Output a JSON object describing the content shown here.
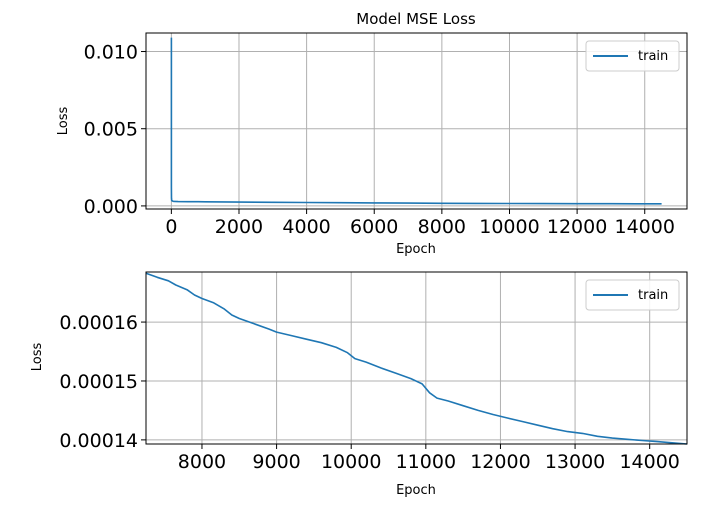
{
  "chart_data": [
    {
      "type": "line",
      "title": "Model MSE Loss",
      "xlabel": "Epoch",
      "ylabel": "Loss",
      "xlim": [
        -750,
        15250
      ],
      "ylim": [
        -0.0002,
        0.0112
      ],
      "xticks": [
        0,
        2000,
        4000,
        6000,
        8000,
        10000,
        12000,
        14000
      ],
      "xtick_labels": [
        "0",
        "2000",
        "4000",
        "6000",
        "8000",
        "10000",
        "12000",
        "14000"
      ],
      "yticks": [
        0.0,
        0.005,
        0.01
      ],
      "ytick_labels": [
        "0.000",
        "0.005",
        "0.010"
      ],
      "grid": true,
      "legend_position": "top-right",
      "series": [
        {
          "name": "train",
          "color": "#1f77b4",
          "x": [
            0,
            1,
            2,
            5,
            10,
            50,
            100,
            200,
            500,
            800,
            1000,
            2000,
            3000,
            4000,
            5000,
            6000,
            7000,
            8000,
            9000,
            10000,
            11000,
            12000,
            13000,
            14000,
            14500
          ],
          "y": [
            0.0109,
            0.004,
            0.0012,
            0.0005,
            0.00035,
            0.0003,
            0.00029,
            0.00028,
            0.000275,
            0.00027,
            0.000265,
            0.00025,
            0.000235,
            0.00022,
            0.000205,
            0.000192,
            0.00018,
            0.00017,
            0.00016,
            0.000155,
            0.00015,
            0.000146,
            0.000143,
            0.00014,
            0.000139
          ]
        }
      ]
    },
    {
      "type": "line",
      "title": "",
      "xlabel": "Epoch",
      "ylabel": "Loss",
      "xlim": [
        7250,
        14500
      ],
      "ylim": [
        0.0001393,
        0.0001685
      ],
      "xticks": [
        8000,
        9000,
        10000,
        11000,
        12000,
        13000,
        14000
      ],
      "xtick_labels": [
        "8000",
        "9000",
        "10000",
        "11000",
        "12000",
        "13000",
        "14000"
      ],
      "yticks": [
        0.00014,
        0.00015,
        0.00016
      ],
      "ytick_labels": [
        "0.00014",
        "0.00015",
        "0.00016"
      ],
      "grid": true,
      "legend_position": "top-right",
      "series": [
        {
          "name": "train",
          "color": "#1f77b4",
          "x": [
            7250,
            7400,
            7550,
            7650,
            7800,
            7900,
            8000,
            8150,
            8300,
            8400,
            8500,
            8700,
            8900,
            9000,
            9200,
            9400,
            9600,
            9800,
            9950,
            10050,
            10200,
            10400,
            10600,
            10800,
            10950,
            11050,
            11150,
            11300,
            11500,
            11700,
            11900,
            12100,
            12300,
            12500,
            12700,
            12900,
            13100,
            13300,
            13500,
            13700,
            13900,
            14100,
            14300,
            14500
          ],
          "y": [
            0.0001683,
            0.0001676,
            0.000167,
            0.0001663,
            0.0001655,
            0.0001646,
            0.000164,
            0.0001633,
            0.0001622,
            0.0001612,
            0.0001606,
            0.0001597,
            0.0001588,
            0.0001583,
            0.0001577,
            0.0001571,
            0.0001565,
            0.0001557,
            0.0001548,
            0.0001538,
            0.0001532,
            0.0001522,
            0.0001513,
            0.0001504,
            0.0001495,
            0.000148,
            0.0001471,
            0.0001466,
            0.0001458,
            0.000145,
            0.0001443,
            0.0001437,
            0.0001431,
            0.0001425,
            0.0001419,
            0.0001414,
            0.0001411,
            0.0001406,
            0.0001403,
            0.0001401,
            0.0001399,
            0.0001397,
            0.0001395,
            0.0001393
          ]
        }
      ]
    }
  ]
}
